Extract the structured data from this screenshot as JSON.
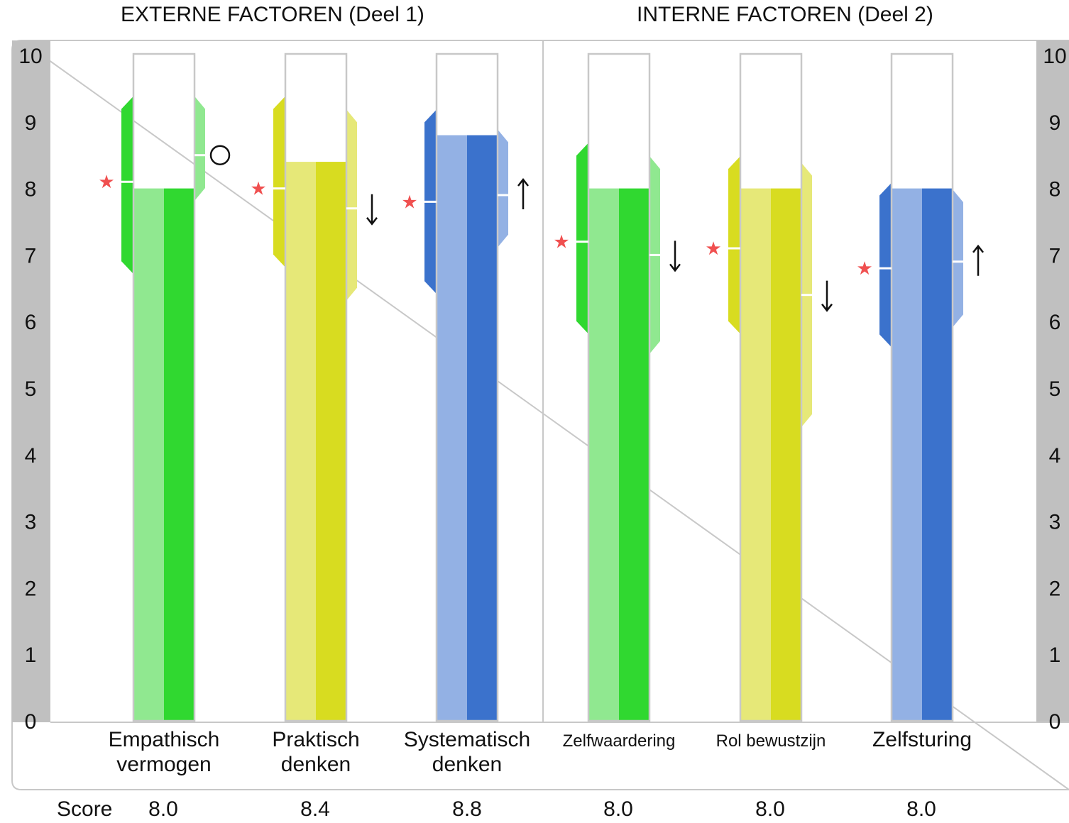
{
  "sections": {
    "external": "EXTERNE FACTOREN (Deel 1)",
    "internal": "INTERNE FACTOREN (Deel 2)"
  },
  "score_label": "Score",
  "colors": {
    "green_light": "#90e890",
    "green_dark": "#30d830",
    "yellow_light": "#e6e878",
    "yellow_dark": "#d8dc20",
    "blue_light": "#93b1e4",
    "blue_dark": "#3b72cc",
    "axis_bg": "#c0c0c0",
    "star": "#f05050"
  },
  "chart_data": {
    "type": "bar",
    "ylim": [
      0,
      10
    ],
    "yticks": [
      "0",
      "1",
      "2",
      "3",
      "4",
      "5",
      "6",
      "7",
      "8",
      "9",
      "10"
    ],
    "categories": [
      [
        "Empathisch",
        "vermogen"
      ],
      [
        "Praktisch",
        "denken"
      ],
      [
        "Systematisch",
        "denken"
      ],
      [
        "Zelfwaardering"
      ],
      [
        "Rol bewustzijn"
      ],
      [
        "Zelfsturing"
      ]
    ],
    "scores": [
      "8.0",
      "8.4",
      "8.8",
      "8.0",
      "8.0",
      "8.0"
    ],
    "bars": [
      {
        "value": 8.0,
        "color": "green",
        "left_range": [
          6.8,
          9.3
        ],
        "left_marker": 8.1,
        "right_range": [
          7.9,
          9.3
        ],
        "right_marker": 8.5,
        "right_symbol": "circle"
      },
      {
        "value": 8.4,
        "color": "yellow",
        "left_range": [
          6.9,
          9.3
        ],
        "left_marker": 8.0,
        "right_range": [
          6.4,
          9.1
        ],
        "right_marker": 7.7,
        "right_symbol": "down"
      },
      {
        "value": 8.8,
        "color": "blue",
        "left_range": [
          6.5,
          9.1
        ],
        "left_marker": 7.8,
        "right_range": [
          7.2,
          8.8
        ],
        "right_marker": 7.9,
        "right_symbol": "up"
      },
      {
        "value": 8.0,
        "color": "green",
        "left_range": [
          5.9,
          8.6
        ],
        "left_marker": 7.2,
        "right_range": [
          5.6,
          8.4
        ],
        "right_marker": 7.0,
        "right_symbol": "down"
      },
      {
        "value": 8.0,
        "color": "yellow",
        "left_range": [
          5.9,
          8.4
        ],
        "left_marker": 7.1,
        "right_range": [
          4.5,
          8.3
        ],
        "right_marker": 6.4,
        "right_symbol": "down"
      },
      {
        "value": 8.0,
        "color": "blue",
        "left_range": [
          5.7,
          8.0
        ],
        "left_marker": 6.8,
        "right_range": [
          6.0,
          7.9
        ],
        "right_marker": 6.9,
        "right_symbol": "up"
      }
    ]
  }
}
